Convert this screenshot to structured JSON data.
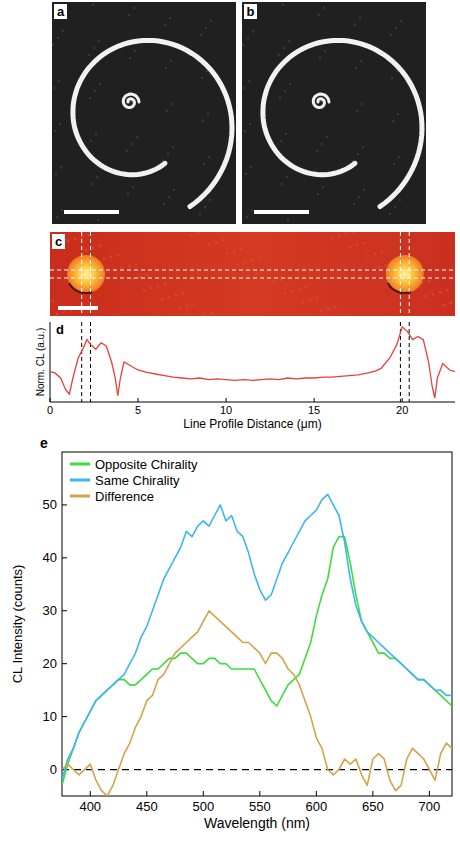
{
  "panels": [
    {
      "title": "a"
    },
    {
      "title": "b"
    },
    {
      "title": "c"
    }
  ],
  "chart_data": [
    {
      "type": "line",
      "title": "d",
      "x_label": "Line Profile Distance (μm)",
      "y_label": "Norm. CL (a.u.)",
      "color": "#e8403a",
      "x": [
        0,
        0.3,
        0.6,
        0.9,
        1.1,
        1.3,
        1.6,
        1.9,
        2.1,
        2.3,
        2.6,
        2.9,
        3.2,
        3.5,
        3.7,
        3.85,
        4,
        4.2,
        4.6,
        5,
        5.5,
        6,
        6.5,
        7,
        7.5,
        8,
        8.5,
        9,
        9.5,
        10,
        10.5,
        11,
        11.5,
        12,
        12.5,
        13,
        13.5,
        14,
        14.5,
        15,
        15.5,
        16,
        16.5,
        17,
        17.5,
        18,
        18.5,
        18.8,
        19.3,
        19.7,
        20,
        20.3,
        20.6,
        20.9,
        21.2,
        21.5,
        21.7,
        21.85,
        22,
        22.3,
        22.7,
        23
      ],
      "values": [
        0.38,
        0.36,
        0.3,
        0.15,
        0.1,
        0.3,
        0.55,
        0.68,
        0.78,
        0.72,
        0.66,
        0.74,
        0.7,
        0.5,
        0.3,
        0.08,
        0.3,
        0.5,
        0.45,
        0.4,
        0.37,
        0.35,
        0.33,
        0.31,
        0.3,
        0.29,
        0.3,
        0.28,
        0.29,
        0.28,
        0.27,
        0.28,
        0.27,
        0.28,
        0.29,
        0.28,
        0.3,
        0.29,
        0.3,
        0.3,
        0.31,
        0.31,
        0.32,
        0.33,
        0.34,
        0.36,
        0.39,
        0.42,
        0.55,
        0.72,
        0.94,
        0.88,
        0.78,
        0.82,
        0.78,
        0.5,
        0.2,
        0.05,
        0.3,
        0.48,
        0.4,
        0.38
      ],
      "xlim": [
        0,
        23
      ],
      "xticks": [
        0,
        5,
        10,
        15,
        20
      ],
      "ylim": [
        0,
        1
      ],
      "tick_labels": "x",
      "vlines": [
        1.8,
        2.3,
        19.9,
        20.4
      ]
    },
    {
      "type": "line",
      "title": "e",
      "x_label": "Wavelength (nm)",
      "y_label": "CL Intensity (counts)",
      "x": [
        375,
        380,
        385,
        390,
        395,
        400,
        405,
        410,
        415,
        420,
        425,
        430,
        435,
        440,
        445,
        450,
        455,
        460,
        465,
        470,
        475,
        480,
        485,
        490,
        495,
        500,
        505,
        510,
        515,
        520,
        525,
        530,
        535,
        540,
        545,
        550,
        555,
        560,
        565,
        570,
        575,
        580,
        585,
        590,
        595,
        600,
        605,
        610,
        615,
        620,
        625,
        630,
        635,
        640,
        645,
        650,
        655,
        660,
        665,
        670,
        675,
        680,
        685,
        690,
        695,
        700,
        705,
        710,
        715,
        720
      ],
      "series": [
        {
          "name": "Opposite Chirality",
          "color": "#3ddc3d",
          "values": [
            -3,
            1,
            4,
            7,
            9,
            11,
            13,
            14,
            15,
            16,
            17,
            17,
            16,
            16,
            17,
            18,
            19,
            19,
            20,
            21,
            21,
            22,
            22,
            21,
            20,
            20,
            21,
            21,
            20,
            20,
            19,
            19,
            19,
            19,
            19,
            17,
            15,
            13,
            12,
            14,
            16,
            17,
            18,
            21,
            24,
            29,
            33,
            36,
            42,
            44,
            44,
            39,
            33,
            28,
            26,
            24,
            22,
            22,
            21,
            21,
            20,
            19,
            18,
            17,
            17,
            16,
            15,
            14,
            13,
            12
          ]
        },
        {
          "name": "Same Chirality",
          "color": "#3bb6f2",
          "values": [
            -2,
            2,
            4,
            7,
            9,
            11,
            13,
            14,
            15,
            16,
            17,
            18,
            20,
            22,
            25,
            27,
            30,
            33,
            36,
            38,
            40,
            42,
            45,
            44,
            46,
            47,
            46,
            48,
            50,
            47,
            48,
            45,
            44,
            41,
            37,
            34,
            32,
            33,
            36,
            39,
            41,
            43,
            45,
            47,
            48,
            49,
            51,
            52,
            50,
            48,
            43,
            36,
            31,
            28,
            26,
            25,
            24,
            23,
            22,
            21,
            20,
            19,
            18,
            17,
            17,
            16,
            15,
            15,
            14,
            14
          ]
        },
        {
          "name": "Difference",
          "color": "#d1a44a",
          "values": [
            0,
            1,
            0,
            -1,
            0,
            1,
            -2,
            -4,
            -5,
            -3,
            0,
            3,
            5,
            8,
            10,
            13,
            14,
            17,
            18,
            20,
            22,
            23,
            24,
            25,
            26,
            28,
            30,
            29,
            28,
            27,
            26,
            25,
            24,
            24,
            23,
            22,
            20,
            22,
            22,
            21,
            19,
            18,
            16,
            13,
            10,
            6,
            4,
            0,
            -1,
            0,
            2,
            1,
            2,
            -1,
            -3,
            2,
            3,
            2,
            -2,
            -4,
            -3,
            2,
            4,
            3,
            2,
            0,
            -2,
            3,
            5,
            4
          ]
        }
      ],
      "xlim": [
        375,
        720
      ],
      "xticks": [
        400,
        450,
        500,
        550,
        600,
        650,
        700
      ],
      "ylim": [
        -5,
        60
      ],
      "yticks": [
        0,
        10,
        20,
        30,
        40,
        50
      ],
      "hline": 0,
      "legend": "top-left"
    }
  ]
}
